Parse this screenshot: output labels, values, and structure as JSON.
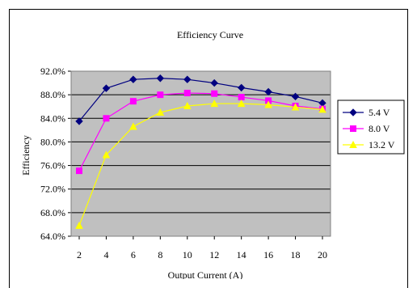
{
  "chart_data": {
    "type": "line",
    "title": "Efficiency Curve",
    "xlabel": "Output Current (A)",
    "ylabel": "Efficiency",
    "x": [
      2,
      4,
      6,
      8,
      10,
      12,
      14,
      16,
      18,
      20
    ],
    "x_ticks": [
      "2",
      "4",
      "6",
      "8",
      "10",
      "12",
      "14",
      "16",
      "18",
      "20"
    ],
    "ylim": [
      64.0,
      92.0
    ],
    "y_ticks": [
      "64.0%",
      "68.0%",
      "72.0%",
      "76.0%",
      "80.0%",
      "84.0%",
      "88.0%",
      "92.0%"
    ],
    "grid": true,
    "legend_position": "right",
    "plot_background": "#c0c0c0",
    "series": [
      {
        "name": "5.4 V",
        "color": "#000080",
        "marker": "diamond",
        "values": [
          83.5,
          89.1,
          90.6,
          90.8,
          90.6,
          90.0,
          89.2,
          88.5,
          87.7,
          86.6
        ]
      },
      {
        "name": "8.0 V",
        "color": "#ff00ff",
        "marker": "square",
        "values": [
          75.1,
          84.0,
          86.9,
          88.0,
          88.3,
          88.2,
          87.6,
          87.0,
          86.1,
          85.6
        ]
      },
      {
        "name": "13.2 V",
        "color": "#ffff00",
        "marker": "triangle",
        "values": [
          65.8,
          77.8,
          82.6,
          85.0,
          86.1,
          86.5,
          86.5,
          86.3,
          85.9,
          85.5
        ]
      }
    ]
  }
}
